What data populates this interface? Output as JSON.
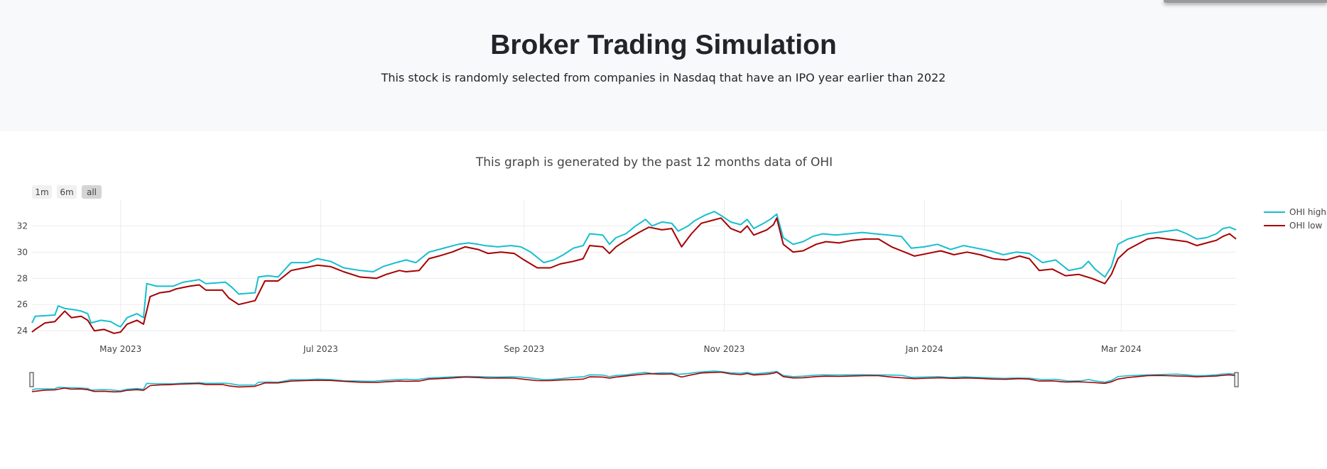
{
  "header": {
    "title": "Broker Trading Simulation",
    "subtitle": "This stock is randomly selected from companies in Nasdaq that have an IPO year earlier than 2022"
  },
  "range_selector": {
    "buttons": [
      {
        "label": "1m",
        "active": false
      },
      {
        "label": "6m",
        "active": false
      },
      {
        "label": "all",
        "active": true
      }
    ]
  },
  "chart_data": {
    "type": "line",
    "title": "This graph is generated by the past 12 months data of OHI",
    "xlabel": "",
    "ylabel": "",
    "x_range": [
      "2023-04-04",
      "2024-04-05"
    ],
    "ylim": [
      23.9,
      33.7
    ],
    "x_tick_labels": [
      {
        "date": "2023-05-01",
        "label": "May 2023"
      },
      {
        "date": "2023-07-01",
        "label": "Jul 2023"
      },
      {
        "date": "2023-09-01",
        "label": "Sep 2023"
      },
      {
        "date": "2023-11-01",
        "label": "Nov 2023"
      },
      {
        "date": "2024-01-01",
        "label": "Jan 2024"
      },
      {
        "date": "2024-03-01",
        "label": "Mar 2024"
      }
    ],
    "y_ticks": [
      24,
      26,
      28,
      30,
      32
    ],
    "grid": true,
    "legend": "right",
    "rangeslider": true,
    "series": [
      {
        "name": "OHI high",
        "color": "#17becf",
        "points": [
          [
            "2023-04-04",
            24.6
          ],
          [
            "2023-04-05",
            25.1
          ],
          [
            "2023-04-11",
            25.2
          ],
          [
            "2023-04-12",
            25.9
          ],
          [
            "2023-04-14",
            25.7
          ],
          [
            "2023-04-17",
            25.6
          ],
          [
            "2023-04-19",
            25.5
          ],
          [
            "2023-04-21",
            25.3
          ],
          [
            "2023-04-22",
            24.6
          ],
          [
            "2023-04-25",
            24.8
          ],
          [
            "2023-04-28",
            24.7
          ],
          [
            "2023-04-30",
            24.4
          ],
          [
            "2023-05-01",
            24.3
          ],
          [
            "2023-05-03",
            25.0
          ],
          [
            "2023-05-06",
            25.3
          ],
          [
            "2023-05-08",
            25.0
          ],
          [
            "2023-05-09",
            27.6
          ],
          [
            "2023-05-12",
            27.4
          ],
          [
            "2023-05-17",
            27.4
          ],
          [
            "2023-05-20",
            27.7
          ],
          [
            "2023-05-25",
            27.9
          ],
          [
            "2023-05-27",
            27.6
          ],
          [
            "2023-06-02",
            27.7
          ],
          [
            "2023-06-04",
            27.3
          ],
          [
            "2023-06-06",
            26.8
          ],
          [
            "2023-06-11",
            26.9
          ],
          [
            "2023-06-12",
            28.1
          ],
          [
            "2023-06-15",
            28.2
          ],
          [
            "2023-06-18",
            28.1
          ],
          [
            "2023-06-22",
            29.2
          ],
          [
            "2023-06-27",
            29.2
          ],
          [
            "2023-06-30",
            29.5
          ],
          [
            "2023-07-04",
            29.3
          ],
          [
            "2023-07-08",
            28.8
          ],
          [
            "2023-07-13",
            28.6
          ],
          [
            "2023-07-17",
            28.5
          ],
          [
            "2023-07-20",
            28.9
          ],
          [
            "2023-07-24",
            29.2
          ],
          [
            "2023-07-27",
            29.4
          ],
          [
            "2023-07-30",
            29.2
          ],
          [
            "2023-08-03",
            30.0
          ],
          [
            "2023-08-06",
            30.2
          ],
          [
            "2023-08-09",
            30.4
          ],
          [
            "2023-08-12",
            30.6
          ],
          [
            "2023-08-15",
            30.7
          ],
          [
            "2023-08-18",
            30.6
          ],
          [
            "2023-08-20",
            30.5
          ],
          [
            "2023-08-24",
            30.4
          ],
          [
            "2023-08-28",
            30.5
          ],
          [
            "2023-08-31",
            30.4
          ],
          [
            "2023-09-03",
            30.0
          ],
          [
            "2023-09-07",
            29.2
          ],
          [
            "2023-09-10",
            29.4
          ],
          [
            "2023-09-13",
            29.8
          ],
          [
            "2023-09-16",
            30.3
          ],
          [
            "2023-09-19",
            30.5
          ],
          [
            "2023-09-21",
            31.4
          ],
          [
            "2023-09-25",
            31.3
          ],
          [
            "2023-09-27",
            30.6
          ],
          [
            "2023-09-29",
            31.1
          ],
          [
            "2023-10-02",
            31.4
          ],
          [
            "2023-10-05",
            32.0
          ],
          [
            "2023-10-08",
            32.5
          ],
          [
            "2023-10-10",
            32.0
          ],
          [
            "2023-10-13",
            32.3
          ],
          [
            "2023-10-16",
            32.2
          ],
          [
            "2023-10-18",
            31.6
          ],
          [
            "2023-10-21",
            32.0
          ],
          [
            "2023-10-23",
            32.4
          ],
          [
            "2023-10-26",
            32.8
          ],
          [
            "2023-10-29",
            33.1
          ],
          [
            "2023-10-31",
            32.8
          ],
          [
            "2023-11-03",
            32.3
          ],
          [
            "2023-11-06",
            32.1
          ],
          [
            "2023-11-08",
            32.5
          ],
          [
            "2023-11-10",
            31.8
          ],
          [
            "2023-11-13",
            32.2
          ],
          [
            "2023-11-15",
            32.5
          ],
          [
            "2023-11-17",
            32.9
          ],
          [
            "2023-11-19",
            31.1
          ],
          [
            "2023-11-22",
            30.6
          ],
          [
            "2023-11-25",
            30.8
          ],
          [
            "2023-11-28",
            31.2
          ],
          [
            "2023-12-01",
            31.4
          ],
          [
            "2023-12-05",
            31.3
          ],
          [
            "2023-12-09",
            31.4
          ],
          [
            "2023-12-13",
            31.5
          ],
          [
            "2023-12-17",
            31.4
          ],
          [
            "2023-12-21",
            31.3
          ],
          [
            "2023-12-25",
            31.2
          ],
          [
            "2023-12-28",
            30.3
          ],
          [
            "2024-01-01",
            30.4
          ],
          [
            "2024-01-05",
            30.6
          ],
          [
            "2024-01-09",
            30.2
          ],
          [
            "2024-01-13",
            30.5
          ],
          [
            "2024-01-17",
            30.3
          ],
          [
            "2024-01-21",
            30.1
          ],
          [
            "2024-01-25",
            29.8
          ],
          [
            "2024-01-29",
            30.0
          ],
          [
            "2024-02-02",
            29.9
          ],
          [
            "2024-02-06",
            29.2
          ],
          [
            "2024-02-10",
            29.4
          ],
          [
            "2024-02-14",
            28.6
          ],
          [
            "2024-02-18",
            28.8
          ],
          [
            "2024-02-20",
            29.3
          ],
          [
            "2024-02-22",
            28.7
          ],
          [
            "2024-02-25",
            28.1
          ],
          [
            "2024-02-27",
            28.9
          ],
          [
            "2024-02-29",
            30.6
          ],
          [
            "2024-03-03",
            31.0
          ],
          [
            "2024-03-06",
            31.2
          ],
          [
            "2024-03-09",
            31.4
          ],
          [
            "2024-03-12",
            31.5
          ],
          [
            "2024-03-15",
            31.6
          ],
          [
            "2024-03-18",
            31.7
          ],
          [
            "2024-03-21",
            31.4
          ],
          [
            "2024-03-24",
            31.0
          ],
          [
            "2024-03-27",
            31.1
          ],
          [
            "2024-03-30",
            31.4
          ],
          [
            "2024-04-01",
            31.8
          ],
          [
            "2024-04-03",
            31.9
          ],
          [
            "2024-04-05",
            31.7
          ]
        ]
      },
      {
        "name": "OHI low",
        "color": "#a60000",
        "points": [
          [
            "2023-04-04",
            23.9
          ],
          [
            "2023-04-05",
            24.1
          ],
          [
            "2023-04-08",
            24.6
          ],
          [
            "2023-04-11",
            24.7
          ],
          [
            "2023-04-14",
            25.5
          ],
          [
            "2023-04-16",
            25.0
          ],
          [
            "2023-04-19",
            25.1
          ],
          [
            "2023-04-21",
            24.8
          ],
          [
            "2023-04-23",
            24.0
          ],
          [
            "2023-04-26",
            24.1
          ],
          [
            "2023-04-29",
            23.8
          ],
          [
            "2023-05-01",
            23.9
          ],
          [
            "2023-05-03",
            24.5
          ],
          [
            "2023-05-06",
            24.8
          ],
          [
            "2023-05-08",
            24.5
          ],
          [
            "2023-05-10",
            26.6
          ],
          [
            "2023-05-13",
            26.9
          ],
          [
            "2023-05-16",
            27.0
          ],
          [
            "2023-05-18",
            27.2
          ],
          [
            "2023-05-22",
            27.4
          ],
          [
            "2023-05-25",
            27.5
          ],
          [
            "2023-05-27",
            27.1
          ],
          [
            "2023-06-01",
            27.1
          ],
          [
            "2023-06-03",
            26.5
          ],
          [
            "2023-06-06",
            26.0
          ],
          [
            "2023-06-11",
            26.3
          ],
          [
            "2023-06-14",
            27.8
          ],
          [
            "2023-06-18",
            27.8
          ],
          [
            "2023-06-22",
            28.6
          ],
          [
            "2023-06-26",
            28.8
          ],
          [
            "2023-06-30",
            29.0
          ],
          [
            "2023-07-04",
            28.9
          ],
          [
            "2023-07-08",
            28.5
          ],
          [
            "2023-07-13",
            28.1
          ],
          [
            "2023-07-18",
            28.0
          ],
          [
            "2023-07-21",
            28.3
          ],
          [
            "2023-07-25",
            28.6
          ],
          [
            "2023-07-27",
            28.5
          ],
          [
            "2023-07-31",
            28.6
          ],
          [
            "2023-08-03",
            29.5
          ],
          [
            "2023-08-06",
            29.7
          ],
          [
            "2023-08-10",
            30.0
          ],
          [
            "2023-08-14",
            30.4
          ],
          [
            "2023-08-18",
            30.2
          ],
          [
            "2023-08-21",
            29.9
          ],
          [
            "2023-08-25",
            30.0
          ],
          [
            "2023-08-29",
            29.9
          ],
          [
            "2023-09-01",
            29.4
          ],
          [
            "2023-09-05",
            28.8
          ],
          [
            "2023-09-09",
            28.8
          ],
          [
            "2023-09-12",
            29.1
          ],
          [
            "2023-09-16",
            29.3
          ],
          [
            "2023-09-19",
            29.5
          ],
          [
            "2023-09-21",
            30.5
          ],
          [
            "2023-09-25",
            30.4
          ],
          [
            "2023-09-27",
            29.9
          ],
          [
            "2023-09-29",
            30.4
          ],
          [
            "2023-10-02",
            30.9
          ],
          [
            "2023-10-06",
            31.5
          ],
          [
            "2023-10-09",
            31.9
          ],
          [
            "2023-10-13",
            31.7
          ],
          [
            "2023-10-16",
            31.8
          ],
          [
            "2023-10-19",
            30.4
          ],
          [
            "2023-10-22",
            31.4
          ],
          [
            "2023-10-25",
            32.2
          ],
          [
            "2023-10-28",
            32.4
          ],
          [
            "2023-10-31",
            32.6
          ],
          [
            "2023-11-03",
            31.8
          ],
          [
            "2023-11-06",
            31.5
          ],
          [
            "2023-11-08",
            32.0
          ],
          [
            "2023-11-10",
            31.3
          ],
          [
            "2023-11-14",
            31.7
          ],
          [
            "2023-11-16",
            32.1
          ],
          [
            "2023-11-17",
            32.6
          ],
          [
            "2023-11-19",
            30.6
          ],
          [
            "2023-11-22",
            30.0
          ],
          [
            "2023-11-25",
            30.1
          ],
          [
            "2023-11-29",
            30.6
          ],
          [
            "2023-12-02",
            30.8
          ],
          [
            "2023-12-06",
            30.7
          ],
          [
            "2023-12-10",
            30.9
          ],
          [
            "2023-12-14",
            31.0
          ],
          [
            "2023-12-18",
            31.0
          ],
          [
            "2023-12-22",
            30.4
          ],
          [
            "2023-12-26",
            30.0
          ],
          [
            "2023-12-29",
            29.7
          ],
          [
            "2024-01-02",
            29.9
          ],
          [
            "2024-01-06",
            30.1
          ],
          [
            "2024-01-10",
            29.8
          ],
          [
            "2024-01-14",
            30.0
          ],
          [
            "2024-01-18",
            29.8
          ],
          [
            "2024-01-22",
            29.5
          ],
          [
            "2024-01-26",
            29.4
          ],
          [
            "2024-01-30",
            29.7
          ],
          [
            "2024-02-02",
            29.5
          ],
          [
            "2024-02-05",
            28.6
          ],
          [
            "2024-02-09",
            28.7
          ],
          [
            "2024-02-13",
            28.2
          ],
          [
            "2024-02-17",
            28.3
          ],
          [
            "2024-02-21",
            28.0
          ],
          [
            "2024-02-25",
            27.6
          ],
          [
            "2024-02-27",
            28.3
          ],
          [
            "2024-02-29",
            29.5
          ],
          [
            "2024-03-03",
            30.2
          ],
          [
            "2024-03-06",
            30.6
          ],
          [
            "2024-03-09",
            31.0
          ],
          [
            "2024-03-12",
            31.1
          ],
          [
            "2024-03-15",
            31.0
          ],
          [
            "2024-03-18",
            30.9
          ],
          [
            "2024-03-21",
            30.8
          ],
          [
            "2024-03-24",
            30.5
          ],
          [
            "2024-03-27",
            30.7
          ],
          [
            "2024-03-30",
            30.9
          ],
          [
            "2024-04-01",
            31.2
          ],
          [
            "2024-04-03",
            31.4
          ],
          [
            "2024-04-05",
            31.0
          ]
        ]
      }
    ]
  }
}
